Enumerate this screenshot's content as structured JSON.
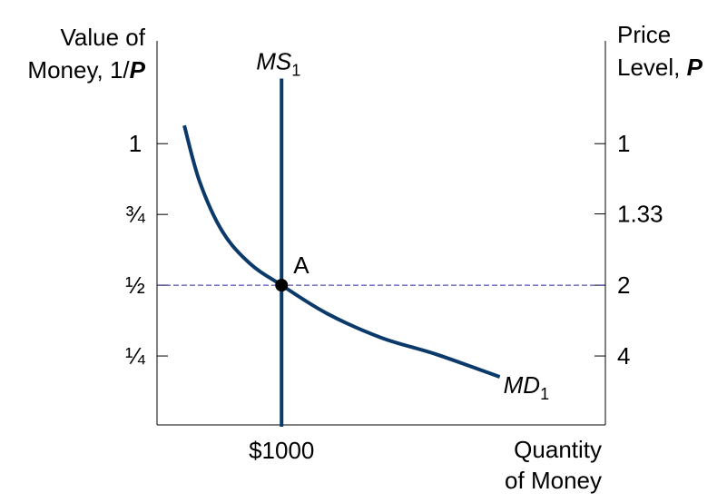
{
  "chart_data": {
    "type": "line",
    "ylabel": {
      "lines": [
        "Value of",
        "Money, 1/"
      ],
      "variable": "P"
    },
    "y2label": {
      "lines": [
        "Price",
        "Level, "
      ],
      "variable": "P"
    },
    "xlabel": {
      "lines": [
        "Quantity",
        "of Money"
      ]
    },
    "xlim": [
      0,
      3600
    ],
    "xticks": [
      {
        "value": 1000,
        "label": "$1000"
      }
    ],
    "ylim": [
      0,
      1.36
    ],
    "yticks": [
      1,
      {
        "value": 0.75,
        "label": "¾"
      },
      {
        "value": 0.5,
        "label": "½"
      },
      {
        "value": 0.25,
        "label": "¼"
      }
    ],
    "y2scale": "reciprocal",
    "y2ticks": [
      1,
      1.33,
      2,
      4
    ],
    "series": [
      {
        "name": "MS",
        "subscript": "1",
        "color": "#0b3a6a",
        "x": [
          1000,
          1000
        ],
        "values": [
          0,
          1.23
        ]
      },
      {
        "name": "MD",
        "subscript": "1",
        "color": "#0b3a6a",
        "x": [
          219,
          343,
          526,
          745,
          1000,
          1365,
          1803,
          2241,
          2752
        ],
        "values": [
          1.064,
          0.865,
          0.689,
          0.577,
          0.5,
          0.4,
          0.314,
          0.256,
          0.176
        ]
      }
    ],
    "points": [
      {
        "label": "A",
        "x": 1000,
        "y": 0.5
      }
    ],
    "guide_color": "#2b2ba8"
  }
}
